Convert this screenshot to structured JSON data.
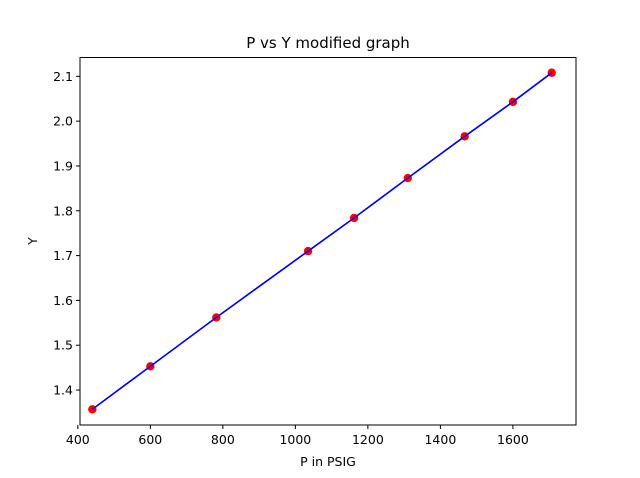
{
  "chart_data": {
    "type": "line",
    "title": "P vs Y modified graph",
    "xlabel": "P in PSIG",
    "ylabel": "Y",
    "xlim": [
      406,
      1774
    ],
    "ylim": [
      1.322,
      2.142
    ],
    "xticks": [
      400,
      600,
      800,
      1000,
      1200,
      1400,
      1600
    ],
    "xtick_labels": [
      "400",
      "600",
      "800",
      "1000",
      "1200",
      "1400",
      "1600"
    ],
    "yticks": [
      1.4,
      1.5,
      1.6,
      1.7,
      1.8,
      1.9,
      2.0,
      2.1
    ],
    "ytick_labels": [
      "1.4",
      "1.5",
      "1.6",
      "1.7",
      "1.8",
      "1.9",
      "2.0",
      "2.1"
    ],
    "grid": false,
    "series": [
      {
        "style": "line+markers",
        "line_color": "#0000ff",
        "marker_color": "#ff0000",
        "x": [
          440,
          600,
          782,
          1035,
          1162,
          1310,
          1467,
          1600,
          1707
        ],
        "y": [
          1.357,
          1.453,
          1.562,
          1.71,
          1.784,
          1.873,
          1.966,
          2.043,
          2.108
        ]
      }
    ]
  }
}
